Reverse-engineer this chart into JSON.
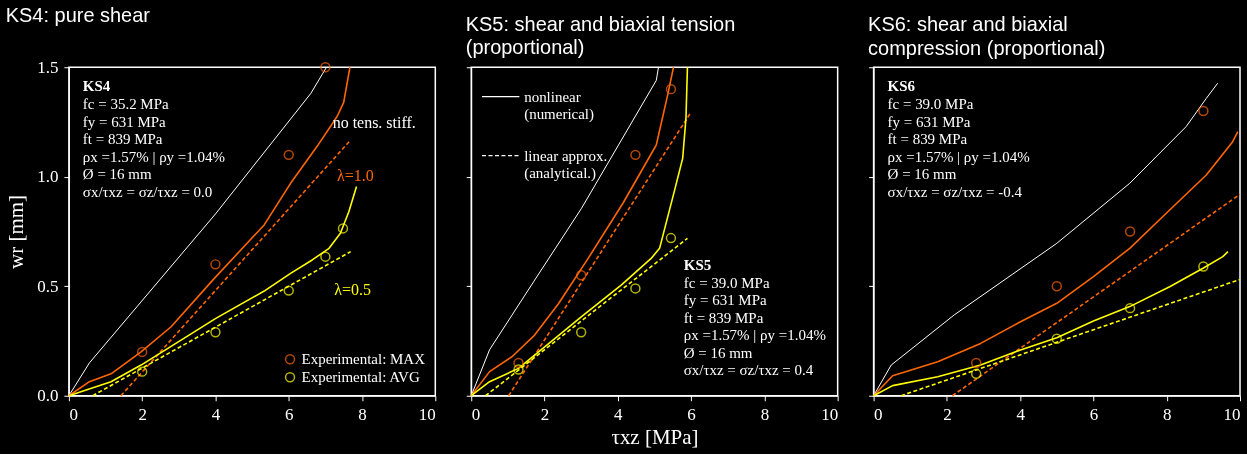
{
  "chart_data": [
    {
      "type": "line",
      "title": "KS4: pure shear",
      "ylabel": "wr [mm]",
      "xlim": [
        0,
        10
      ],
      "xticks": [
        0,
        2,
        4,
        6,
        8,
        10
      ],
      "ylim": [
        0,
        1.5
      ],
      "yticks": [
        {
          "value": 0,
          "label": "0.0"
        },
        0.5,
        {
          "value": 1,
          "label": "1.0"
        },
        1.5
      ],
      "legend": "bottom right",
      "annotations": [
        "KS4\nfc = 35.2 MPa\nfy = 631 MPa\nft = 839 MPa\nρx =1.57% | ρy =1.04%\nØ = 16 mm\nσx/τxz = σz/τxz = 0.0",
        {
          "text": "no tens. stiff.",
          "x": 6.6,
          "y": 1.38
        },
        {
          "text": "λ=1.0",
          "x": 6.72,
          "y": 1.14
        },
        {
          "text": "λ=0.5",
          "x": 6.64,
          "y": 0.62
        }
      ],
      "series": [
        {
          "color": "#ffffff",
          "line_style": "solid",
          "x": [
            0,
            0.56,
            4.0,
            6.6,
            7.03
          ],
          "values": [
            0,
            0.15,
            0.83,
            1.38,
            1.5
          ]
        },
        {
          "color": "#ff6600",
          "line_style": "solid",
          "x": [
            0,
            0.56,
            1.15,
            1.97,
            2.79,
            3.97,
            5.33,
            6.05,
            6.78,
            7.32,
            7.5,
            7.67
          ],
          "values": [
            0,
            0.064,
            0.1,
            0.2,
            0.315,
            0.536,
            0.78,
            0.97,
            1.14,
            1.275,
            1.34,
            1.5
          ]
        },
        {
          "color": "#ff6600",
          "line_style": "dashed",
          "x": [
            1.42,
            7.69
          ],
          "values": [
            0,
            1.168
          ]
        },
        {
          "color": "#ffff00",
          "line_style": "solid",
          "x": [
            0,
            1.15,
            1.97,
            4.01,
            5.33,
            6.05,
            6.64,
            7.1,
            7.41,
            7.64,
            7.85
          ],
          "values": [
            0,
            0.064,
            0.14,
            0.353,
            0.478,
            0.559,
            0.62,
            0.673,
            0.742,
            0.84,
            0.955
          ]
        },
        {
          "color": "#ffff00",
          "line_style": "dashed",
          "x": [
            0.65,
            7.69
          ],
          "values": [
            0,
            0.658
          ]
        },
        {
          "name": "Experimental: MAX",
          "type": "scatter",
          "marker": "circle",
          "color": "#ff6600",
          "x": [
            2,
            4,
            6,
            7
          ],
          "values": [
            0.2,
            0.6,
            1.1,
            1.5
          ]
        },
        {
          "name": "Experimental: AVG",
          "type": "scatter",
          "marker": "circle",
          "color": "#ffff00",
          "x": [
            2,
            4,
            6,
            7,
            7.48
          ],
          "values": [
            0.11,
            0.29,
            0.48,
            0.635,
            0.764
          ]
        }
      ]
    },
    {
      "type": "line",
      "title": "KS5:  shear and biaxial tension\n(proportional)",
      "xlabel": "τxz [MPa]",
      "tick_labels": "x",
      "xlim": [
        0,
        10
      ],
      "xticks": [
        0,
        2,
        4,
        6,
        8,
        10
      ],
      "ylim": [
        0,
        1.5
      ],
      "yticks": [
        0,
        0.5,
        1,
        1.5
      ],
      "legend": "top left",
      "annotations": [
        "nonlinear\n(numerical)",
        "linear approx.\n(analytical.)",
        "KS5\nfc = 39.0 MPa\nfy = 631 MPa\nft = 839 MPa\nρx =1.57% | ρy =1.04%\nØ = 16 mm\nσx/τxz = σz/τxz = 0.4"
      ],
      "series": [
        {
          "color": "#ffffff",
          "line_style": "solid",
          "x": [
            0,
            0.5,
            1.7,
            3.01,
            5.05,
            5.11
          ],
          "values": [
            0,
            0.21,
            0.52,
            0.856,
            1.44,
            1.5
          ]
        },
        {
          "color": "#ff6600",
          "line_style": "solid",
          "x": [
            0,
            0.5,
            1.11,
            1.73,
            2.38,
            3.19,
            4.14,
            5.05,
            5.36,
            5.52
          ],
          "values": [
            0,
            0.11,
            0.178,
            0.277,
            0.42,
            0.627,
            0.879,
            1.145,
            1.373,
            1.5
          ]
        },
        {
          "color": "#ff6600",
          "line_style": "dashed",
          "x": [
            1.02,
            5.98
          ],
          "values": [
            0,
            1.29
          ]
        },
        {
          "color": "#ffff00",
          "line_style": "solid",
          "x": [
            0,
            0.5,
            1.29,
            3.01,
            4.1,
            4.91,
            5.14,
            5.54,
            5.77,
            5.86,
            5.9
          ],
          "values": [
            0,
            0.064,
            0.125,
            0.361,
            0.506,
            0.627,
            0.673,
            0.932,
            1.084,
            1.267,
            1.5
          ]
        },
        {
          "color": "#ffff00",
          "line_style": "dashed",
          "x": [
            0.39,
            5.9
          ],
          "values": [
            0,
            0.719
          ]
        },
        {
          "type": "scatter",
          "marker": "circle",
          "color": "#ff6600",
          "x": [
            1.29,
            3.0,
            4.48,
            5.45
          ],
          "values": [
            0.15,
            0.55,
            1.1,
            1.4
          ]
        },
        {
          "type": "scatter",
          "marker": "circle",
          "color": "#ffff00",
          "x": [
            1.29,
            3.0,
            4.48,
            5.45
          ],
          "values": [
            0.12,
            0.29,
            0.49,
            0.72
          ]
        }
      ]
    },
    {
      "type": "line",
      "title": "KS6:  shear and biaxial\ncompression (proportional)",
      "tick_labels": "x",
      "xlim": [
        0,
        10
      ],
      "xticks": [
        0,
        2,
        4,
        6,
        8,
        10
      ],
      "ylim": [
        0,
        1.5
      ],
      "yticks": [
        0,
        0.5,
        1,
        1.5
      ],
      "annotations": [
        "KS6\nfc = 39.0 MPa\nfy = 631 MPa\nft = 839 MPa\nρx =1.57% | ρy =1.04%\nØ = 16 mm\nσx/τxz = σz/τxz = -0.4"
      ],
      "series": [
        {
          "color": "#ffffff",
          "line_style": "solid",
          "x": [
            0,
            0.48,
            2.2,
            5.0,
            6.99,
            8.53,
            9.08,
            9.39
          ],
          "values": [
            0,
            0.14,
            0.369,
            0.696,
            0.97,
            1.229,
            1.358,
            1.427
          ]
        },
        {
          "color": "#ff6600",
          "line_style": "solid",
          "x": [
            0,
            0.52,
            1.75,
            2.92,
            4.01,
            5.0,
            6.0,
            6.99,
            8.08,
            9.08,
            9.8,
            9.94
          ],
          "values": [
            0,
            0.091,
            0.155,
            0.239,
            0.338,
            0.422,
            0.544,
            0.673,
            0.848,
            1.008,
            1.16,
            1.206
          ]
        },
        {
          "color": "#ff6600",
          "line_style": "dashed",
          "x": [
            2.15,
            10
          ],
          "values": [
            0,
            0.92
          ]
        },
        {
          "color": "#ffff00",
          "line_style": "solid",
          "x": [
            0,
            0.52,
            1.75,
            2.92,
            4.01,
            5.0,
            6.0,
            6.99,
            8.08,
            8.99,
            9.53,
            9.67
          ],
          "values": [
            0,
            0.046,
            0.087,
            0.14,
            0.209,
            0.265,
            0.341,
            0.407,
            0.498,
            0.582,
            0.635,
            0.658
          ]
        },
        {
          "color": "#ffff00",
          "line_style": "dashed",
          "x": [
            0.75,
            10
          ],
          "values": [
            0,
            0.531
          ]
        },
        {
          "type": "scatter",
          "marker": "circle",
          "color": "#ff6600",
          "x": [
            2.8,
            5,
            7,
            9
          ],
          "values": [
            0.15,
            0.5,
            0.75,
            1.3
          ]
        },
        {
          "type": "scatter",
          "marker": "circle",
          "color": "#ffff00",
          "x": [
            2.8,
            5,
            7,
            9
          ],
          "values": [
            0.1,
            0.26,
            0.4,
            0.59
          ]
        }
      ]
    }
  ]
}
